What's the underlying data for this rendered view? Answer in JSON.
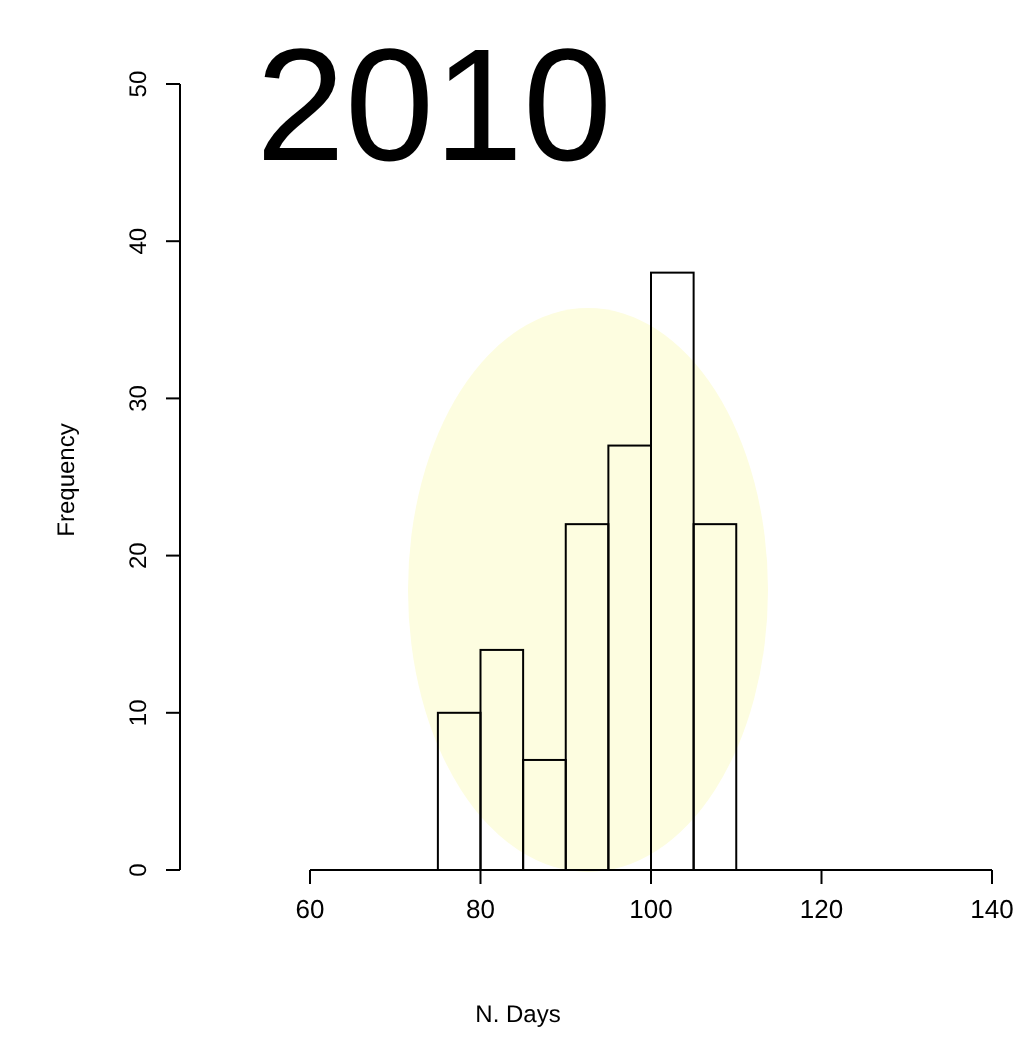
{
  "chart_data": {
    "type": "histogram",
    "title": "2010",
    "xlabel": "N. Days",
    "ylabel": "Frequency",
    "bins": [
      75,
      80,
      85,
      90,
      95,
      100,
      105,
      110
    ],
    "values": [
      10,
      14,
      7,
      22,
      27,
      38,
      22
    ],
    "color": "#000000",
    "xlim": [
      60,
      140
    ],
    "xticks": [
      60,
      80,
      100,
      120,
      140
    ],
    "ylim": [
      0,
      50
    ],
    "yticks": [
      0,
      10,
      20,
      30,
      40,
      50
    ]
  }
}
